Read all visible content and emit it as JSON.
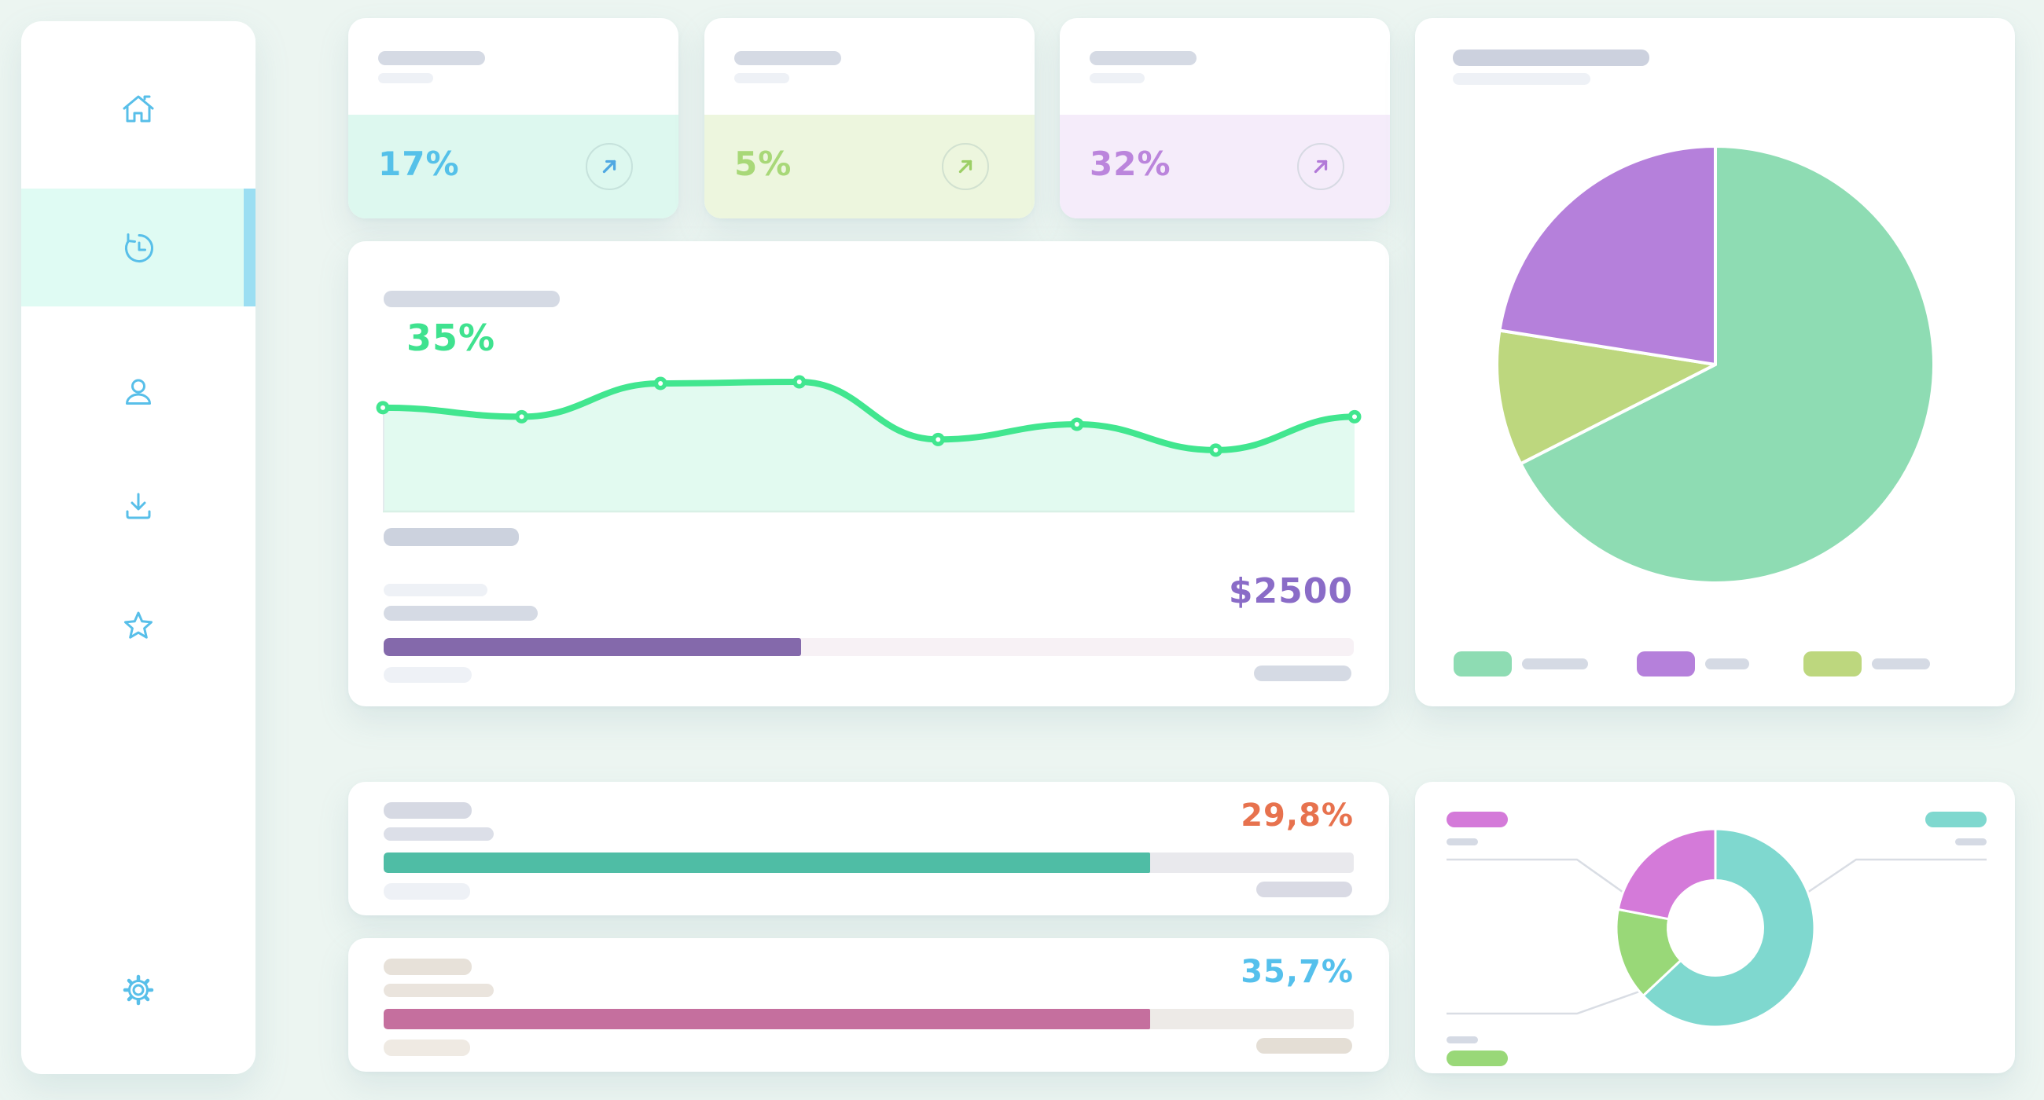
{
  "theme": {
    "bg": "#ecf5f1",
    "card_bg": "#ffffff",
    "placeholder_dark": "#d5dae4",
    "placeholder_light": "#eef1f6",
    "icon_color": "#58bfe9",
    "active_bg": "#dffbf3",
    "active_bar": "#9bdef2",
    "connector": "#d9dde4"
  },
  "sidebar": {
    "items": [
      {
        "name": "home",
        "icon": "home-icon",
        "active": false
      },
      {
        "name": "history",
        "icon": "history-icon",
        "active": true
      },
      {
        "name": "profile",
        "icon": "user-icon",
        "active": false
      },
      {
        "name": "downloads",
        "icon": "download-icon",
        "active": false
      },
      {
        "name": "favorites",
        "icon": "star-icon",
        "active": false
      }
    ],
    "footer": {
      "name": "settings",
      "icon": "gear-icon"
    }
  },
  "stats": [
    {
      "value": "17%",
      "bg": "#ddf8ef",
      "color": "#55c1e9",
      "arrow_color": "#4fa8e2"
    },
    {
      "value": "5%",
      "bg": "#edf6de",
      "color": "#a8d878",
      "arrow_color": "#9ccf66"
    },
    {
      "value": "32%",
      "bg": "#f5ecfa",
      "color": "#bb85dc",
      "arrow_color": "#b279d8"
    }
  ],
  "trend_card": {
    "value_label": "35%",
    "value_color": "#3fe28f",
    "amount": "$2500",
    "amount_color": "#8a6cc7",
    "progress_percent": 43,
    "progress_color": "#8469ab",
    "progress_track": "#f7f1f5"
  },
  "pie_card": {
    "legend": [
      {
        "color": "#8edcb3"
      },
      {
        "color": "#b580db"
      },
      {
        "color": "#bdd77e"
      }
    ]
  },
  "metric_cards": [
    {
      "value": "29,8%",
      "value_color": "#e7724e",
      "bar_percent": 79,
      "bar_color": "#4fbda5",
      "bar_track": "#e9e9ed",
      "ph": "#d6d9e3",
      "ph2": "#dcdfe8",
      "ph_bottom_left": "#eef1f6",
      "ph_bottom_right": "#d9dae4"
    },
    {
      "value": "35,7%",
      "value_color": "#55c0ec",
      "bar_percent": 79,
      "bar_color": "#c56f9e",
      "bar_track": "#edeae7",
      "ph": "#e7e1d9",
      "ph2": "#eae4dd",
      "ph_bottom_left": "#efeae3",
      "ph_bottom_right": "#e4ded5"
    }
  ],
  "donut_card": {
    "legend": [
      {
        "pos": "top-left",
        "color": "#d47ad9"
      },
      {
        "pos": "top-right",
        "color": "#7fd8cf"
      },
      {
        "pos": "bottom-left",
        "color": "#99d878"
      }
    ]
  },
  "chart_data": [
    {
      "id": "trend",
      "type": "area",
      "x_count": 8,
      "values": [
        69,
        63,
        85,
        86,
        48,
        58,
        41,
        63
      ],
      "ylim": [
        0,
        100
      ],
      "annotation": "35%",
      "line_color": "#41e68f",
      "fill_color": "#e2faf0",
      "markers": true,
      "legend_position": "none",
      "grid": false
    },
    {
      "id": "pie",
      "type": "pie",
      "labels": [
        "green",
        "yellow-green",
        "purple"
      ],
      "values": [
        67.5,
        10,
        22.5
      ],
      "colors": [
        "#8edcb3",
        "#bdd77e",
        "#b580db"
      ],
      "start_angle_deg": 0,
      "clockwise": true,
      "legend_position": "bottom"
    },
    {
      "id": "donut",
      "type": "pie",
      "labels": [
        "teal",
        "green",
        "magenta"
      ],
      "values": [
        63,
        15,
        22
      ],
      "colors": [
        "#7fd8cf",
        "#99d878",
        "#d47ad9"
      ],
      "start_angle_deg": 0,
      "clockwise": true,
      "inner_ratio": 0.48,
      "legend_position": "callouts"
    },
    {
      "id": "budget-progress",
      "type": "bar",
      "percent": 43,
      "label": "$2500"
    },
    {
      "id": "metric-a-progress",
      "type": "bar",
      "percent": 79,
      "label": "29,8%"
    },
    {
      "id": "metric-b-progress",
      "type": "bar",
      "percent": 79,
      "label": "35,7%"
    }
  ]
}
